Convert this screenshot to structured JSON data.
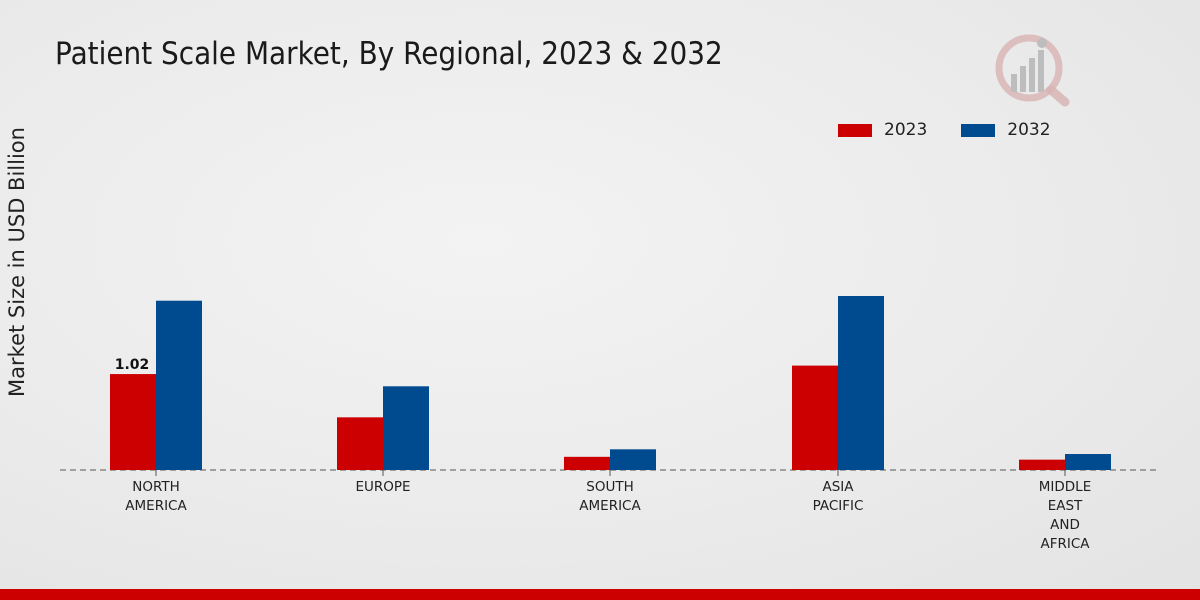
{
  "chart_data": {
    "type": "bar",
    "title": "Patient Scale Market, By Regional, 2023 & 2032",
    "xlabel": "",
    "ylabel": "Market Size in USD Billion",
    "ylim": [
      0,
      1.9
    ],
    "categories": [
      [
        "NORTH",
        "AMERICA"
      ],
      [
        "EUROPE"
      ],
      [
        "SOUTH",
        "AMERICA"
      ],
      [
        "ASIA",
        "PACIFIC"
      ],
      [
        "MIDDLE",
        "EAST",
        "AND",
        "AFRICA"
      ]
    ],
    "series": [
      {
        "name": "2023",
        "color": "#cc0000",
        "values": [
          1.02,
          0.56,
          0.14,
          1.11,
          0.11
        ]
      },
      {
        "name": "2032",
        "color": "#004a8f",
        "values": [
          1.8,
          0.89,
          0.22,
          1.85,
          0.17
        ]
      }
    ],
    "data_labels": [
      {
        "series": 0,
        "category": 0,
        "text": "1.02"
      }
    ],
    "legend_position": "top-right",
    "grid": false
  }
}
